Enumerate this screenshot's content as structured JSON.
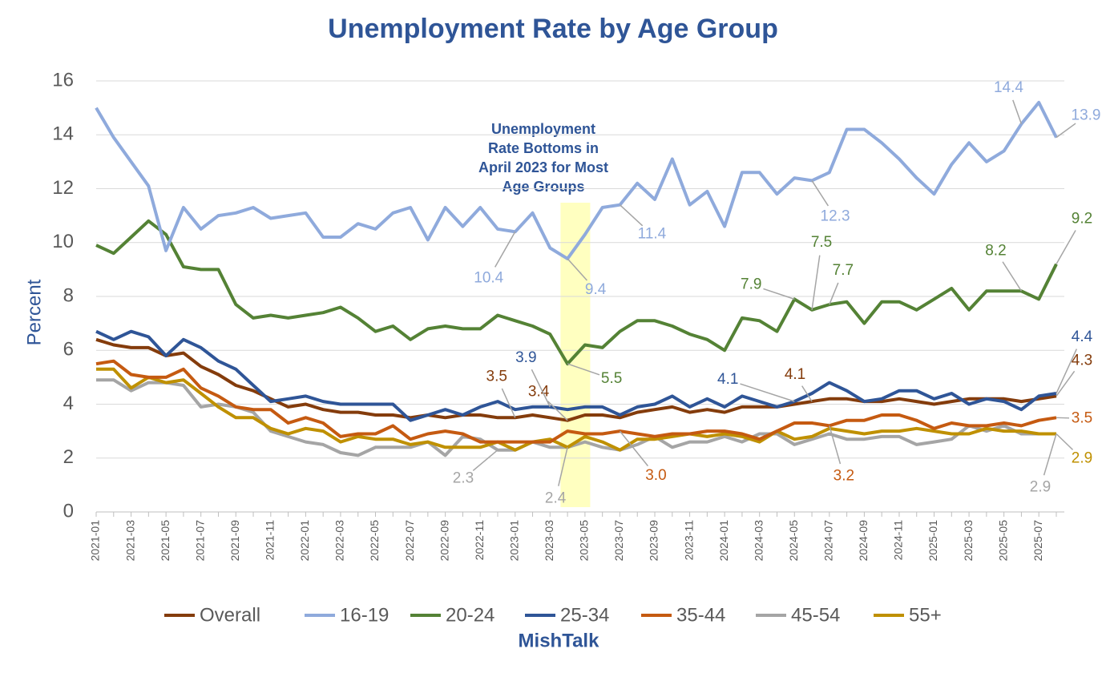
{
  "chart_data": {
    "type": "line",
    "title": "Unemployment Rate by Age Group",
    "y_label": "Percent",
    "source": "MishTalk",
    "annotation": [
      "Unemployment",
      "Rate Bottoms in",
      "April 2023 for Most",
      "Age Groups"
    ],
    "categories": [
      "2021-01",
      null,
      "2021-03",
      null,
      "2021-05",
      null,
      "2021-07",
      null,
      "2021-09",
      null,
      "2021-11",
      null,
      "2022-01",
      null,
      "2022-03",
      null,
      "2022-05",
      null,
      "2022-07",
      null,
      "2022-09",
      null,
      "2022-11",
      null,
      "2023-01",
      null,
      "2023-03",
      null,
      "2023-05",
      null,
      "2023-07",
      null,
      "2023-09",
      null,
      "2023-11",
      null,
      "2024-01",
      null,
      "2024-03",
      null,
      "2024-05",
      null,
      "2024-07",
      null,
      "2024-09",
      null,
      "2024-11",
      null,
      "2025-01",
      null,
      "2025-03",
      null,
      "2025-05",
      null,
      "2025-07",
      null
    ],
    "ylim": [
      0,
      16
    ],
    "yticks": [
      0,
      2,
      4,
      6,
      8,
      10,
      12,
      14,
      16
    ],
    "grid": true,
    "legend": "bottom",
    "series": [
      {
        "name": "Overall",
        "color": "#843c0c",
        "values": [
          6.4,
          6.2,
          6.1,
          6.1,
          5.8,
          5.9,
          5.4,
          5.1,
          4.7,
          4.5,
          4.2,
          3.9,
          4.0,
          3.8,
          3.7,
          3.7,
          3.6,
          3.6,
          3.5,
          3.6,
          3.5,
          3.6,
          3.6,
          3.5,
          3.5,
          3.6,
          3.5,
          3.4,
          3.6,
          3.6,
          3.5,
          3.7,
          3.8,
          3.9,
          3.7,
          3.8,
          3.7,
          3.9,
          3.9,
          3.9,
          4.0,
          4.1,
          4.2,
          4.2,
          4.1,
          4.1,
          4.2,
          4.1,
          4.0,
          4.1,
          4.2,
          4.2,
          4.2,
          4.1,
          4.2,
          4.3
        ],
        "value_labels": [
          null,
          null,
          null,
          null,
          null,
          null,
          null,
          null,
          null,
          null,
          null,
          null,
          null,
          null,
          null,
          null,
          null,
          null,
          null,
          null,
          null,
          null,
          null,
          null,
          "3.5",
          null,
          null,
          "3.4",
          null,
          null,
          null,
          null,
          null,
          null,
          null,
          null,
          null,
          null,
          null,
          null,
          null,
          "4.1",
          null,
          null,
          null,
          null,
          null,
          null,
          null,
          null,
          null,
          null,
          null,
          null,
          null,
          "4.3"
        ]
      },
      {
        "name": "16-19",
        "color": "#8faadc",
        "values": [
          15.0,
          13.9,
          13.0,
          12.1,
          9.7,
          11.3,
          10.5,
          11.0,
          11.1,
          11.3,
          10.9,
          11.0,
          11.1,
          10.2,
          10.2,
          10.7,
          10.5,
          11.1,
          11.3,
          10.1,
          11.3,
          10.6,
          11.3,
          10.5,
          10.4,
          11.1,
          9.8,
          9.4,
          10.3,
          11.3,
          11.4,
          12.2,
          11.6,
          13.1,
          11.4,
          11.9,
          10.6,
          12.6,
          12.6,
          11.8,
          12.4,
          12.3,
          12.6,
          14.2,
          14.2,
          13.7,
          13.1,
          12.4,
          11.8,
          12.9,
          13.7,
          13.0,
          13.4,
          14.4,
          15.2,
          13.9
        ],
        "value_labels": [
          null,
          null,
          null,
          null,
          null,
          null,
          null,
          null,
          null,
          null,
          null,
          null,
          null,
          null,
          null,
          null,
          null,
          null,
          null,
          null,
          null,
          null,
          null,
          null,
          "10.4",
          null,
          null,
          "9.4",
          null,
          null,
          "11.4",
          null,
          null,
          null,
          null,
          null,
          null,
          null,
          null,
          null,
          null,
          "12.3",
          null,
          null,
          null,
          null,
          null,
          null,
          null,
          null,
          null,
          null,
          null,
          "14.4",
          null,
          "13.9"
        ]
      },
      {
        "name": "20-24",
        "color": "#548235",
        "values": [
          9.9,
          9.6,
          10.2,
          10.8,
          10.3,
          9.1,
          9.0,
          9.0,
          7.7,
          7.2,
          7.3,
          7.2,
          7.3,
          7.4,
          7.6,
          7.2,
          6.7,
          6.9,
          6.4,
          6.8,
          6.9,
          6.8,
          6.8,
          7.3,
          7.1,
          6.9,
          6.6,
          5.5,
          6.2,
          6.1,
          6.7,
          7.1,
          7.1,
          6.9,
          6.6,
          6.4,
          6.0,
          7.2,
          7.1,
          6.7,
          7.9,
          7.5,
          7.7,
          7.8,
          7.0,
          7.8,
          7.8,
          7.5,
          7.9,
          8.3,
          7.5,
          8.2,
          8.2,
          8.2,
          7.9,
          9.2
        ],
        "value_labels": [
          null,
          null,
          null,
          null,
          null,
          null,
          null,
          null,
          null,
          null,
          null,
          null,
          null,
          null,
          null,
          null,
          null,
          null,
          null,
          null,
          null,
          null,
          null,
          null,
          null,
          null,
          null,
          "5.5",
          null,
          null,
          null,
          null,
          null,
          null,
          null,
          null,
          null,
          null,
          null,
          null,
          "7.9",
          "7.5",
          "7.7",
          null,
          null,
          null,
          null,
          null,
          null,
          null,
          null,
          null,
          null,
          "8.2",
          null,
          "9.2"
        ]
      },
      {
        "name": "25-34",
        "color": "#2f5597",
        "values": [
          6.7,
          6.4,
          6.7,
          6.5,
          5.8,
          6.4,
          6.1,
          5.6,
          5.3,
          4.7,
          4.1,
          4.2,
          4.3,
          4.1,
          4.0,
          4.0,
          4.0,
          4.0,
          3.4,
          3.6,
          3.8,
          3.6,
          3.9,
          4.1,
          3.8,
          3.9,
          3.9,
          3.8,
          3.9,
          3.9,
          3.6,
          3.9,
          4.0,
          4.3,
          3.9,
          4.2,
          3.9,
          4.3,
          4.1,
          3.9,
          4.1,
          4.4,
          4.8,
          4.5,
          4.1,
          4.2,
          4.5,
          4.5,
          4.2,
          4.4,
          4.0,
          4.2,
          4.1,
          3.8,
          4.3,
          4.4
        ],
        "value_labels": [
          null,
          null,
          null,
          null,
          null,
          null,
          null,
          null,
          null,
          null,
          null,
          null,
          null,
          null,
          null,
          null,
          null,
          null,
          null,
          null,
          null,
          null,
          null,
          null,
          null,
          null,
          "3.9",
          null,
          null,
          null,
          null,
          null,
          null,
          null,
          null,
          null,
          null,
          null,
          null,
          null,
          "4.1",
          null,
          null,
          null,
          null,
          null,
          null,
          null,
          null,
          null,
          null,
          null,
          null,
          null,
          null,
          "4.4"
        ]
      },
      {
        "name": "35-44",
        "color": "#c55a11",
        "values": [
          5.5,
          5.6,
          5.1,
          5.0,
          5.0,
          5.3,
          4.6,
          4.3,
          3.9,
          3.8,
          3.8,
          3.3,
          3.5,
          3.3,
          2.8,
          2.9,
          2.9,
          3.2,
          2.7,
          2.9,
          3.0,
          2.9,
          2.6,
          2.6,
          2.6,
          2.6,
          2.6,
          3.0,
          2.9,
          2.9,
          3.0,
          2.9,
          2.8,
          2.9,
          2.9,
          3.0,
          3.0,
          2.9,
          2.7,
          3.0,
          3.3,
          3.3,
          3.2,
          3.4,
          3.4,
          3.6,
          3.6,
          3.4,
          3.1,
          3.3,
          3.2,
          3.2,
          3.3,
          3.2,
          3.4,
          3.5
        ],
        "value_labels": [
          null,
          null,
          null,
          null,
          null,
          null,
          null,
          null,
          null,
          null,
          null,
          null,
          null,
          null,
          null,
          null,
          null,
          null,
          null,
          null,
          null,
          null,
          null,
          null,
          null,
          null,
          null,
          null,
          null,
          null,
          "3.0",
          null,
          null,
          null,
          null,
          null,
          null,
          null,
          null,
          null,
          null,
          null,
          "3.2",
          null,
          null,
          null,
          null,
          null,
          null,
          null,
          null,
          null,
          null,
          null,
          null,
          "3.5"
        ]
      },
      {
        "name": "45-54",
        "color": "#a5a5a5",
        "values": [
          4.9,
          4.9,
          4.5,
          4.8,
          4.8,
          4.7,
          3.9,
          4.0,
          3.9,
          3.7,
          3.0,
          2.8,
          2.6,
          2.5,
          2.2,
          2.1,
          2.4,
          2.4,
          2.4,
          2.6,
          2.1,
          2.8,
          2.7,
          2.3,
          2.3,
          2.6,
          2.4,
          2.4,
          2.6,
          2.4,
          2.3,
          2.5,
          2.8,
          2.4,
          2.6,
          2.6,
          2.8,
          2.6,
          2.9,
          2.9,
          2.5,
          2.7,
          2.9,
          2.7,
          2.7,
          2.8,
          2.8,
          2.5,
          2.6,
          2.7,
          3.2,
          3.0,
          3.2,
          2.9,
          2.9,
          2.9
        ],
        "value_labels": [
          null,
          null,
          null,
          null,
          null,
          null,
          null,
          null,
          null,
          null,
          null,
          null,
          null,
          null,
          null,
          null,
          null,
          null,
          null,
          null,
          null,
          null,
          null,
          "2.3",
          null,
          null,
          null,
          "2.4",
          null,
          null,
          null,
          null,
          null,
          null,
          null,
          null,
          null,
          null,
          null,
          null,
          null,
          null,
          null,
          null,
          null,
          null,
          null,
          null,
          null,
          null,
          null,
          null,
          null,
          null,
          null,
          "2.9"
        ]
      },
      {
        "name": "55+",
        "color": "#bf9000",
        "values": [
          5.3,
          5.3,
          4.6,
          5.0,
          4.8,
          4.9,
          4.4,
          3.9,
          3.5,
          3.5,
          3.1,
          2.9,
          3.1,
          3.0,
          2.6,
          2.8,
          2.7,
          2.7,
          2.5,
          2.6,
          2.4,
          2.4,
          2.4,
          2.6,
          2.3,
          2.6,
          2.7,
          2.4,
          2.8,
          2.6,
          2.3,
          2.7,
          2.7,
          2.8,
          2.9,
          2.8,
          2.9,
          2.8,
          2.6,
          3.0,
          2.7,
          2.8,
          3.1,
          3.0,
          2.9,
          3.0,
          3.0,
          3.1,
          3.0,
          2.9,
          2.9,
          3.1,
          3.0,
          3.0,
          2.9,
          2.9
        ],
        "value_labels": [
          null,
          null,
          null,
          null,
          null,
          null,
          null,
          null,
          null,
          null,
          null,
          null,
          null,
          null,
          null,
          null,
          null,
          null,
          null,
          null,
          null,
          null,
          null,
          null,
          null,
          null,
          null,
          null,
          null,
          null,
          null,
          null,
          null,
          null,
          null,
          null,
          null,
          null,
          null,
          null,
          null,
          null,
          null,
          null,
          null,
          null,
          null,
          null,
          null,
          null,
          null,
          null,
          null,
          null,
          null,
          "2.9"
        ]
      }
    ]
  }
}
